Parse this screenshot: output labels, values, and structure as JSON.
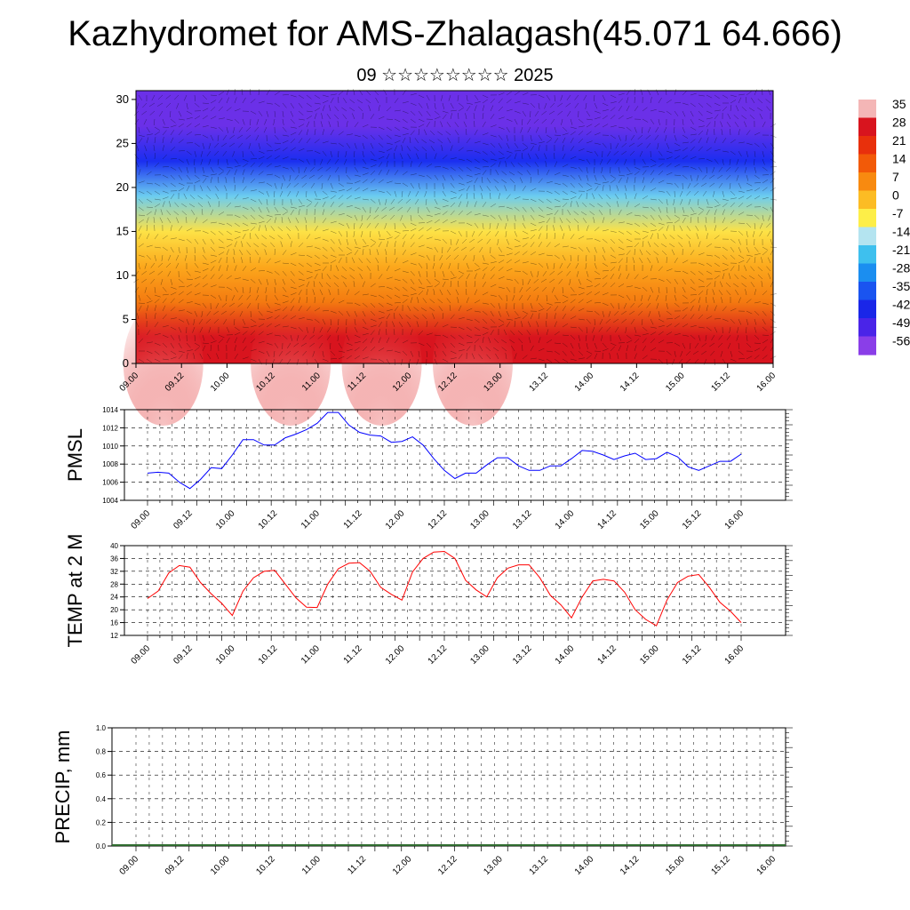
{
  "title": "Kazhydromet for AMS-Zhalagash(45.071 64.666)",
  "subtitle": "09 ☆☆☆☆☆☆☆☆ 2025",
  "time_labels": [
    "09.00",
    "09.12",
    "10.00",
    "10.12",
    "11.00",
    "11.12",
    "12.00",
    "12.12",
    "13.00",
    "13.12",
    "14.00",
    "14.12",
    "15.00",
    "15.12",
    "16.00"
  ],
  "chart_data": [
    {
      "type": "heatmap",
      "name": "temperature-wind cross-section",
      "x": [
        "09.00",
        "09.12",
        "10.00",
        "10.12",
        "11.00",
        "11.12",
        "12.00",
        "12.12",
        "13.00",
        "13.12",
        "14.00",
        "14.12",
        "15.00",
        "15.12",
        "16.00"
      ],
      "yticks": [
        0,
        5,
        10,
        15,
        20,
        25,
        30
      ],
      "ylim": [
        0,
        31
      ],
      "colorbar_labels": [
        "35",
        "28",
        "21",
        "14",
        "7",
        "0",
        "-7",
        "-14",
        "-21",
        "-28",
        "-35",
        "-42",
        "-49",
        "-56"
      ],
      "colorbar_colors": [
        "#f4b6b6",
        "#d8141e",
        "#e8300c",
        "#f25a08",
        "#f88a10",
        "#fcbc24",
        "#fdee48",
        "#b4e4f0",
        "#3ec0ee",
        "#1b8ef0",
        "#1a54f0",
        "#1a26e8",
        "#4a24e8",
        "#8a3ee8"
      ],
      "profile_z": [
        0,
        3,
        7,
        11,
        15,
        19,
        23,
        27,
        31
      ],
      "profile_t": [
        28,
        22,
        10,
        2,
        -9,
        -25,
        -50,
        -60,
        -55
      ],
      "vectors": "wind vectors overlaid"
    },
    {
      "type": "line",
      "ylabel": "PMSL",
      "ylim": [
        1004,
        1014
      ],
      "yticks": [
        1004,
        1006,
        1008,
        1010,
        1012,
        1014
      ],
      "color": "#0000ff",
      "values": [
        1007.0,
        1007.1,
        1007.0,
        1006.0,
        1005.3,
        1006.3,
        1007.6,
        1007.5,
        1009.0,
        1010.7,
        1010.7,
        1010.1,
        1010.1,
        1010.9,
        1011.3,
        1011.8,
        1012.5,
        1013.7,
        1013.7,
        1012.3,
        1011.5,
        1011.2,
        1011.1,
        1010.4,
        1010.5,
        1011.0,
        1010.1,
        1008.6,
        1007.3,
        1006.4,
        1007.0,
        1007.0,
        1007.9,
        1008.7,
        1008.7,
        1007.8,
        1007.3,
        1007.3,
        1007.8,
        1007.8,
        1008.6,
        1009.5,
        1009.4,
        1009.0,
        1008.5,
        1008.9,
        1009.2,
        1008.5,
        1008.6,
        1009.3,
        1008.8,
        1007.7,
        1007.3,
        1007.8,
        1008.3,
        1008.3,
        1009.1
      ]
    },
    {
      "type": "line",
      "ylabel": "TEMP at 2 M",
      "ylim": [
        12,
        40
      ],
      "yticks": [
        12,
        16,
        20,
        24,
        28,
        32,
        36,
        40
      ],
      "color": "#ff0000",
      "values": [
        23.5,
        25.8,
        31.5,
        33.8,
        33.3,
        28.5,
        25.0,
        22.0,
        18.2,
        25.8,
        30.0,
        32.0,
        32.3,
        28.0,
        23.7,
        20.8,
        20.7,
        28.0,
        32.8,
        34.5,
        34.7,
        32.0,
        27.0,
        24.8,
        23.0,
        31.8,
        36.0,
        38.0,
        38.2,
        36.0,
        29.2,
        26.2,
        24.0,
        30.0,
        33.0,
        34.0,
        34.0,
        30.0,
        24.5,
        21.5,
        17.5,
        24.0,
        29.0,
        29.5,
        29.0,
        25.5,
        20.0,
        17.0,
        15.0,
        23.0,
        28.5,
        30.5,
        31.0,
        27.0,
        22.3,
        19.5,
        16.0
      ]
    },
    {
      "type": "bar",
      "ylabel": "PRECIP, mm",
      "ylim": [
        0,
        1
      ],
      "yticks": [
        "0.0",
        "0.2",
        "0.4",
        "0.6",
        "0.8",
        "1.0"
      ],
      "values": []
    }
  ]
}
